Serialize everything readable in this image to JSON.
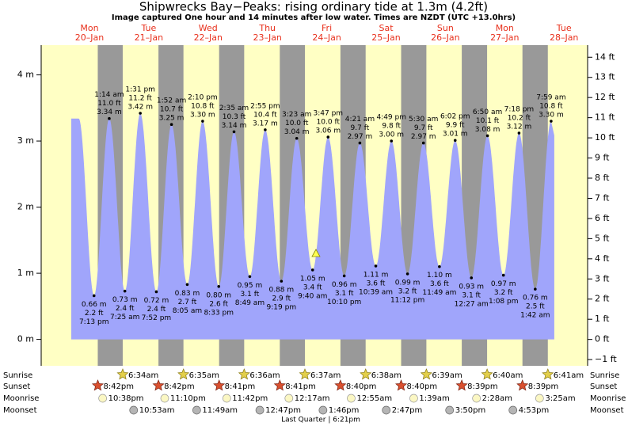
{
  "chart_data": {
    "type": "tide",
    "title": "Shipwrecks Bay−Peaks: rising  ordinary tide at 1.3m (4.2ft)",
    "subtitle": "Image captured One hour and 14 minutes after low water. Times are NZDT (UTC +13.0hrs)",
    "days": [
      {
        "name": "Mon",
        "date": "20–Jan"
      },
      {
        "name": "Tue",
        "date": "21–Jan"
      },
      {
        "name": "Wed",
        "date": "22–Jan"
      },
      {
        "name": "Thu",
        "date": "23–Jan"
      },
      {
        "name": "Fri",
        "date": "24–Jan"
      },
      {
        "name": "Sat",
        "date": "25–Jan"
      },
      {
        "name": "Sun",
        "date": "26–Jan"
      },
      {
        "name": "Mon",
        "date": "27–Jan"
      },
      {
        "name": "Tue",
        "date": "28–Jan"
      }
    ],
    "color": "#a0a5fb",
    "ylim": [
      -0.4,
      4.45
    ],
    "yticks": [
      {
        "value": 0,
        "label": "0 m"
      },
      {
        "value": 1,
        "label": "1 m"
      },
      {
        "value": 2,
        "label": "2 m"
      },
      {
        "value": 3,
        "label": "3 m"
      },
      {
        "value": 4,
        "label": "4 m"
      }
    ],
    "y2lim": [
      -1.31,
      14.6
    ],
    "y2ticks": [
      {
        "value": -1,
        "label": "−1 ft"
      },
      {
        "value": 0,
        "label": "0 ft"
      },
      {
        "value": 1,
        "label": "1 ft"
      },
      {
        "value": 2,
        "label": "2 ft"
      },
      {
        "value": 3,
        "label": "3 ft"
      },
      {
        "value": 4,
        "label": "4 ft"
      },
      {
        "value": 5,
        "label": "5 ft"
      },
      {
        "value": 6,
        "label": "6 ft"
      },
      {
        "value": 7,
        "label": "7 ft"
      },
      {
        "value": 8,
        "label": "8 ft"
      },
      {
        "value": 9,
        "label": "9 ft"
      },
      {
        "value": 10,
        "label": "10 ft"
      },
      {
        "value": 11,
        "label": "11 ft"
      },
      {
        "value": 12,
        "label": "12 ft"
      },
      {
        "value": 13,
        "label": "13 ft"
      },
      {
        "value": 14,
        "label": "14 ft"
      }
    ],
    "events": [
      {
        "kind": "low",
        "time": "7:13 pm",
        "m": {
          "value": 0.66,
          "label": "0.66 m"
        },
        "ft": {
          "value": 2.2,
          "label": "2.2 ft"
        }
      },
      {
        "kind": "high",
        "time": "1:14 am",
        "m": {
          "value": 3.34,
          "label": "3.34 m"
        },
        "ft": {
          "value": 11,
          "label": "11.0 ft"
        }
      },
      {
        "kind": "low",
        "time": "7:25 am",
        "m": {
          "value": 0.73,
          "label": "0.73 m"
        },
        "ft": {
          "value": 2.4,
          "label": "2.4 ft"
        }
      },
      {
        "kind": "high",
        "time": "1:31 pm",
        "m": {
          "value": 3.42,
          "label": "3.42 m"
        },
        "ft": {
          "value": 11.2,
          "label": "11.2 ft"
        }
      },
      {
        "kind": "low",
        "time": "7:52 pm",
        "m": {
          "value": 0.72,
          "label": "0.72 m"
        },
        "ft": {
          "value": 2.4,
          "label": "2.4 ft"
        }
      },
      {
        "kind": "high",
        "time": "1:52 am",
        "m": {
          "value": 3.25,
          "label": "3.25 m"
        },
        "ft": {
          "value": 10.7,
          "label": "10.7 ft"
        }
      },
      {
        "kind": "low",
        "time": "8:05 am",
        "m": {
          "value": 0.83,
          "label": "0.83 m"
        },
        "ft": {
          "value": 2.7,
          "label": "2.7 ft"
        }
      },
      {
        "kind": "high",
        "time": "2:10 pm",
        "m": {
          "value": 3.3,
          "label": "3.30 m"
        },
        "ft": {
          "value": 10.8,
          "label": "10.8 ft"
        }
      },
      {
        "kind": "low",
        "time": "8:33 pm",
        "m": {
          "value": 0.8,
          "label": "0.80 m"
        },
        "ft": {
          "value": 2.6,
          "label": "2.6 ft"
        }
      },
      {
        "kind": "high",
        "time": "2:35 am",
        "m": {
          "value": 3.14,
          "label": "3.14 m"
        },
        "ft": {
          "value": 10.3,
          "label": "10.3 ft"
        }
      },
      {
        "kind": "low",
        "time": "8:49 am",
        "m": {
          "value": 0.95,
          "label": "0.95 m"
        },
        "ft": {
          "value": 3.1,
          "label": "3.1 ft"
        }
      },
      {
        "kind": "high",
        "time": "2:55 pm",
        "m": {
          "value": 3.17,
          "label": "3.17 m"
        },
        "ft": {
          "value": 10.4,
          "label": "10.4 ft"
        }
      },
      {
        "kind": "low",
        "time": "9:19 pm",
        "m": {
          "value": 0.88,
          "label": "0.88 m"
        },
        "ft": {
          "value": 2.9,
          "label": "2.9 ft"
        }
      },
      {
        "kind": "high",
        "time": "3:23 am",
        "m": {
          "value": 3.04,
          "label": "3.04 m"
        },
        "ft": {
          "value": 10,
          "label": "10.0 ft"
        }
      },
      {
        "kind": "low",
        "time": "9:40 am",
        "m": {
          "value": 1.05,
          "label": "1.05 m"
        },
        "ft": {
          "value": 3.4,
          "label": "3.4 ft"
        }
      },
      {
        "kind": "high",
        "time": "3:47 pm",
        "m": {
          "value": 3.06,
          "label": "3.06 m"
        },
        "ft": {
          "value": 10,
          "label": "10.0 ft"
        }
      },
      {
        "kind": "low",
        "time": "10:10 pm",
        "m": {
          "value": 0.96,
          "label": "0.96 m"
        },
        "ft": {
          "value": 3.1,
          "label": "3.1 ft"
        }
      },
      {
        "kind": "high",
        "time": "4:21 am",
        "m": {
          "value": 2.97,
          "label": "2.97 m"
        },
        "ft": {
          "value": 9.7,
          "label": "9.7 ft"
        }
      },
      {
        "kind": "low",
        "time": "10:39 am",
        "m": {
          "value": 1.11,
          "label": "1.11 m"
        },
        "ft": {
          "value": 3.6,
          "label": "3.6 ft"
        }
      },
      {
        "kind": "high",
        "time": "4:49 pm",
        "m": {
          "value": 3,
          "label": "3.00 m"
        },
        "ft": {
          "value": 9.8,
          "label": "9.8 ft"
        }
      },
      {
        "kind": "low",
        "time": "11:12 pm",
        "m": {
          "value": 0.99,
          "label": "0.99 m"
        },
        "ft": {
          "value": 3.2,
          "label": "3.2 ft"
        }
      },
      {
        "kind": "high",
        "time": "5:30 am",
        "m": {
          "value": 2.97,
          "label": "2.97 m"
        },
        "ft": {
          "value": 9.7,
          "label": "9.7 ft"
        }
      },
      {
        "kind": "low",
        "time": "11:49 am",
        "m": {
          "value": 1.1,
          "label": "1.10 m"
        },
        "ft": {
          "value": 3.6,
          "label": "3.6 ft"
        }
      },
      {
        "kind": "high",
        "time": "6:02 pm",
        "m": {
          "value": 3.01,
          "label": "3.01 m"
        },
        "ft": {
          "value": 9.9,
          "label": "9.9 ft"
        }
      },
      {
        "kind": "low",
        "time": "12:27 am",
        "m": {
          "value": 0.93,
          "label": "0.93 m"
        },
        "ft": {
          "value": 3.1,
          "label": "3.1 ft"
        }
      },
      {
        "kind": "high",
        "time": "6:50 am",
        "m": {
          "value": 3.08,
          "label": "3.08 m"
        },
        "ft": {
          "value": 10.1,
          "label": "10.1 ft"
        }
      },
      {
        "kind": "low",
        "time": "1:08 pm",
        "m": {
          "value": 0.97,
          "label": "0.97 m"
        },
        "ft": {
          "value": 3.2,
          "label": "3.2 ft"
        }
      },
      {
        "kind": "high",
        "time": "7:18 pm",
        "m": {
          "value": 3.12,
          "label": "3.12 m"
        },
        "ft": {
          "value": 10.2,
          "label": "10.2 ft"
        }
      },
      {
        "kind": "low",
        "time": "1:42 am",
        "m": {
          "value": 0.76,
          "label": "0.76 m"
        },
        "ft": {
          "value": 2.5,
          "label": "2.5 ft"
        }
      },
      {
        "kind": "high",
        "time": "7:59 am",
        "m": {
          "value": 3.3,
          "label": "3.30 m"
        },
        "ft": {
          "value": 10.8,
          "label": "10.8 ft"
        }
      }
    ],
    "row_labels": {
      "sunrise": "Sunrise",
      "sunset": "Sunset",
      "moonrise": "Moonrise",
      "moonset": "Moonset"
    },
    "sunrise": [
      "6:34am",
      "6:35am",
      "6:36am",
      "6:37am",
      "6:38am",
      "6:39am",
      "6:40am",
      "6:41am"
    ],
    "sunset": [
      "8:42pm",
      "8:42pm",
      "8:41pm",
      "8:41pm",
      "8:40pm",
      "8:40pm",
      "8:39pm",
      "8:39pm"
    ],
    "moonrise": [
      "10:38pm",
      "11:10pm",
      "11:42pm",
      "12:17am",
      "12:55am",
      "1:39am",
      "2:28am",
      "3:25am"
    ],
    "moonset": [
      "10:53am",
      "11:49am",
      "12:47pm",
      "1:46pm",
      "2:47pm",
      "3:50pm",
      "4:53pm"
    ],
    "moon_phase": "Last Quarter | 6:21pm"
  }
}
